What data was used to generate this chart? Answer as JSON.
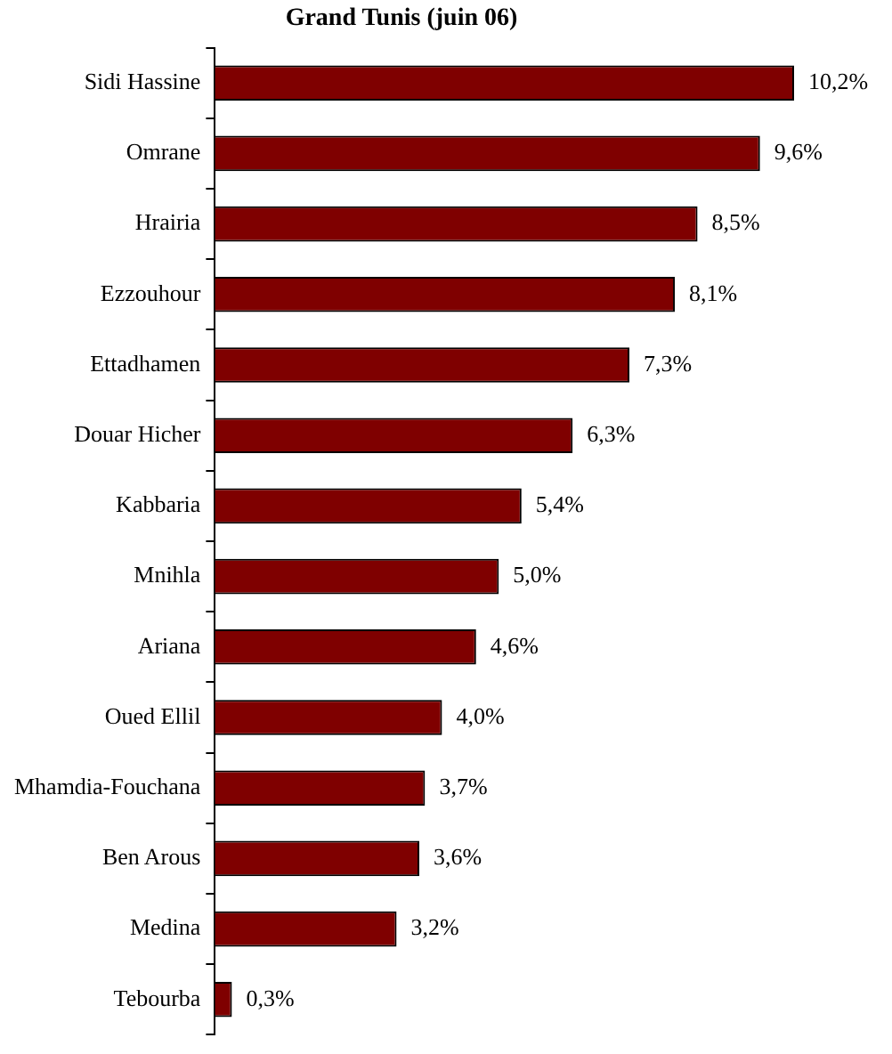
{
  "chart_data": {
    "type": "bar",
    "orientation": "horizontal",
    "title": "Grand Tunis (juin 06)",
    "categories": [
      "Sidi Hassine",
      "Omrane",
      "Hrairia",
      "Ezzouhour",
      "Ettadhamen",
      "Douar Hicher",
      "Kabbaria",
      "Mnihla",
      "Ariana",
      "Oued Ellil",
      "Mhamdia-Fouchana",
      "Ben Arous",
      "Medina",
      "Tebourba"
    ],
    "values": [
      10.2,
      9.6,
      8.5,
      8.1,
      7.3,
      6.3,
      5.4,
      5.0,
      4.6,
      4.0,
      3.7,
      3.6,
      3.2,
      0.3
    ],
    "value_labels": [
      "10,2%",
      "9,6%",
      "8,5%",
      "8,1%",
      "7,3%",
      "6,3%",
      "5,4%",
      "5,0%",
      "4,6%",
      "4,0%",
      "3,7%",
      "3,6%",
      "3,2%",
      "0,3%"
    ],
    "color": "#7f0000",
    "legend": false
  }
}
